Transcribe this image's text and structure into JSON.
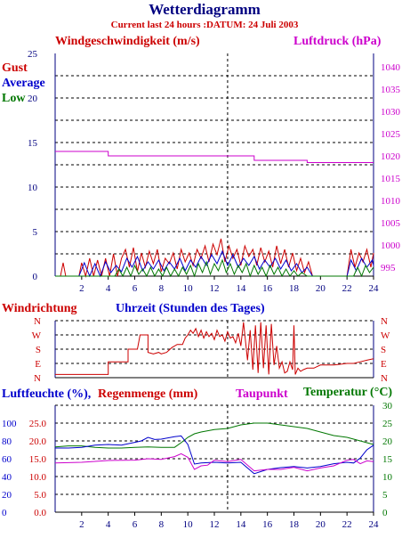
{
  "colors": {
    "navy": "#000080",
    "red": "#cc0000",
    "magenta": "#cc00cc",
    "green": "#007700",
    "blue": "#0000cc",
    "frame": "#000080"
  },
  "title": "Wetterdiagramm",
  "subtitle": "Current last 24 hours :DATUM: 24 Juli 2003",
  "chart_data": [
    {
      "type": "line",
      "panel": "wind",
      "label_left": "Windgeschwindigkeit (m/s)",
      "label_right": "Luftdruck (hPa)",
      "legend": [
        "Gust",
        "Average",
        "Low"
      ],
      "x_ticks": [
        "2",
        "4",
        "6",
        "8",
        "10",
        "12",
        "14",
        "16",
        "18",
        "20",
        "22",
        "24"
      ],
      "y_left_ticks": [
        "0",
        "5",
        "10",
        "15",
        "20",
        "25"
      ],
      "y_right_ticks": [
        "995",
        "1000",
        "1005",
        "1010",
        "1015",
        "1020",
        "1025",
        "1030",
        "1035",
        "1040"
      ],
      "xlim": [
        0,
        24
      ],
      "ylim_left": [
        0,
        25
      ],
      "ylim_right": [
        993,
        1043
      ],
      "grid": true,
      "marker_x": 13,
      "series": [
        {
          "name": "Luftdruck",
          "axis": "right",
          "x": [
            0,
            4,
            4,
            15,
            15,
            19,
            19,
            24
          ],
          "values": [
            1021,
            1021,
            1020,
            1020,
            1019,
            1019,
            1018.5,
            1018.5
          ]
        },
        {
          "name": "Gust",
          "axis": "left",
          "x": [
            0,
            0.4,
            0.6,
            0.8,
            1,
            1.5,
            1.8,
            2,
            2.3,
            2.6,
            2.9,
            3.2,
            3.5,
            3.8,
            4.1,
            4.4,
            4.7,
            5,
            5.3,
            5.6,
            5.9,
            6.2,
            6.5,
            6.8,
            7.1,
            7.4,
            7.7,
            8,
            8.3,
            8.6,
            8.9,
            9.2,
            9.5,
            9.8,
            10.1,
            10.4,
            10.7,
            11,
            11.3,
            11.6,
            11.9,
            12.2,
            12.5,
            12.8,
            13.1,
            13.4,
            13.7,
            14,
            14.3,
            14.6,
            14.9,
            15.2,
            15.5,
            15.8,
            16.1,
            16.4,
            16.7,
            17,
            17.3,
            17.6,
            17.9,
            18.2,
            18.5,
            18.8,
            19.1,
            19.4,
            19.7,
            20,
            20.5,
            21,
            21.5,
            22,
            22.3,
            22.6,
            22.9,
            23.2,
            23.5,
            23.8,
            24
          ],
          "values": [
            0,
            0,
            1.5,
            0,
            0,
            0,
            0,
            1.5,
            0,
            2,
            0,
            1.8,
            0,
            2,
            0,
            2.5,
            0,
            2,
            3,
            1,
            3.2,
            0.5,
            2.6,
            1,
            2.8,
            1.4,
            3,
            0.5,
            2,
            1.4,
            2.6,
            0.8,
            3,
            1.6,
            2.6,
            1.2,
            3,
            2,
            3.4,
            1.6,
            3.6,
            2.4,
            4.2,
            1.6,
            3.4,
            2,
            3,
            1.2,
            3.4,
            2.2,
            3,
            1.2,
            3.2,
            1.6,
            2.8,
            1,
            3.4,
            1.4,
            3,
            1,
            2.6,
            0.6,
            2,
            0.4,
            1.6,
            0,
            0,
            0,
            0,
            0,
            0,
            0,
            3,
            1,
            2.6,
            1.6,
            3,
            1,
            2.6
          ]
        },
        {
          "name": "Average",
          "axis": "left",
          "x": [
            0,
            1.8,
            2.2,
            2.6,
            3,
            3.4,
            3.8,
            4.2,
            4.6,
            5,
            5.4,
            5.8,
            6.2,
            6.6,
            7,
            7.4,
            7.8,
            8.2,
            8.6,
            9,
            9.4,
            9.8,
            10.2,
            10.6,
            11,
            11.4,
            11.8,
            12.2,
            12.6,
            13,
            13.4,
            13.8,
            14.2,
            14.6,
            15,
            15.4,
            15.8,
            16.2,
            16.6,
            17,
            17.4,
            17.8,
            18.2,
            18.6,
            19,
            19.4,
            20,
            22,
            22.3,
            22.7,
            23.1,
            23.5,
            23.9,
            24
          ],
          "values": [
            0,
            0,
            1.5,
            0,
            1.4,
            0,
            1.6,
            0.4,
            1.2,
            0.5,
            2,
            1,
            2.2,
            0.6,
            1.6,
            0.8,
            1.8,
            0.6,
            1.6,
            0.8,
            2,
            0.6,
            1.8,
            1,
            2.2,
            1.2,
            2.4,
            1.4,
            2.8,
            1.2,
            2.4,
            1,
            2,
            1.2,
            2.2,
            0.8,
            1.8,
            1,
            2,
            0.8,
            1.8,
            0.6,
            1.4,
            0.4,
            1,
            0,
            0,
            0,
            1.8,
            0.6,
            2,
            1,
            1.8,
            1.2
          ]
        },
        {
          "name": "Low",
          "axis": "left",
          "x": [
            0,
            4.5,
            4.8,
            5.1,
            5.4,
            5.7,
            6,
            6.3,
            6.6,
            6.9,
            7.2,
            7.5,
            7.8,
            8.1,
            8.4,
            8.7,
            9,
            9.3,
            9.6,
            9.9,
            10.2,
            10.5,
            10.8,
            11.1,
            11.4,
            11.7,
            12,
            12.3,
            12.6,
            12.9,
            13.2,
            13.5,
            13.8,
            14.1,
            14.4,
            14.7,
            15,
            15.3,
            15.6,
            15.9,
            16.2,
            16.5,
            16.8,
            17.1,
            17.4,
            17.7,
            18,
            18.3,
            18.6,
            19,
            22.5,
            22.8,
            23.1,
            23.4,
            23.7,
            24
          ],
          "values": [
            0,
            0,
            0.8,
            0,
            1,
            0,
            1.2,
            0.2,
            0.8,
            0,
            1,
            0,
            0.8,
            0,
            1,
            0,
            0.8,
            0,
            1,
            0.2,
            1.2,
            0,
            1.4,
            0.4,
            1.6,
            0.2,
            1.4,
            0.6,
            1.8,
            0.4,
            1.4,
            0.2,
            1.2,
            0.4,
            1.4,
            0,
            1.2,
            0.2,
            1,
            0,
            1.2,
            0.2,
            1,
            0,
            0.8,
            0,
            0.6,
            0,
            0.4,
            0,
            0,
            1,
            0,
            1.2,
            0.4,
            1
          ]
        }
      ]
    },
    {
      "type": "line",
      "panel": "direction",
      "label_left": "Windrichtung",
      "label_center": "Uhrzeit (Stunden des Tages)",
      "y_ticks": [
        "N",
        "W",
        "S",
        "E",
        "N"
      ],
      "ylim": [
        0,
        360
      ],
      "xlim": [
        0,
        24
      ],
      "grid": true,
      "marker_x": 13,
      "series": [
        {
          "name": "Windrichtung",
          "x": [
            0,
            4,
            4,
            4.5,
            5,
            5.5,
            5.5,
            6,
            6.2,
            6.4,
            6.6,
            7,
            7,
            7.4,
            7.8,
            8,
            8.4,
            8.8,
            9.2,
            9.6,
            9.8,
            10,
            10.2,
            10.4,
            10.6,
            10.8,
            11,
            11.2,
            11.4,
            11.6,
            11.8,
            12,
            12.2,
            12.4,
            12.6,
            12.8,
            13,
            13.2,
            13.4,
            13.6,
            13.8,
            14,
            14.2,
            14.5,
            14.7,
            14.9,
            15.1,
            15.3,
            15.5,
            15.7,
            15.9,
            16.1,
            16.3,
            16.5,
            16.7,
            16.9,
            17.1,
            17.3,
            17.5,
            17.7,
            17.9,
            18,
            18.1,
            18.3,
            18.5,
            18.7,
            19,
            19.5,
            20,
            21,
            22,
            22.5,
            23,
            23.5,
            24
          ],
          "values": [
            20,
            20,
            100,
            100,
            100,
            100,
            180,
            180,
            180,
            270,
            270,
            270,
            160,
            150,
            160,
            150,
            160,
            190,
            210,
            210,
            250,
            270,
            300,
            280,
            310,
            260,
            300,
            250,
            290,
            260,
            280,
            240,
            300,
            260,
            270,
            230,
            290,
            250,
            260,
            220,
            280,
            200,
            350,
            110,
            300,
            50,
            330,
            30,
            350,
            60,
            330,
            20,
            340,
            80,
            200,
            60,
            100,
            30,
            40,
            100,
            50,
            330,
            20,
            60,
            40,
            50,
            60,
            60,
            80,
            80,
            90,
            90,
            100,
            110,
            120
          ]
        }
      ]
    },
    {
      "type": "line",
      "panel": "humidity",
      "label_left": "Luftfeuchte (%),",
      "label_left2": "Regenmenge (mm)",
      "label_dew": "Taupunkt",
      "label_right": "Temperatur (°C)",
      "x_ticks": [
        "2",
        "4",
        "6",
        "8",
        "10",
        "12",
        "14",
        "16",
        "18",
        "20",
        "22",
        "24"
      ],
      "y_humidity_ticks": [
        "0",
        "20",
        "40",
        "60",
        "80",
        "100"
      ],
      "y_rain_ticks": [
        "0.0",
        "5.0",
        "10.0",
        "15.0",
        "20.0",
        "25.0"
      ],
      "y_temp_ticks": [
        "0",
        "5",
        "10",
        "15",
        "20",
        "25",
        "30"
      ],
      "xlim": [
        0,
        24
      ],
      "ylim_temp": [
        0,
        30
      ],
      "grid": true,
      "marker_x": 13,
      "series": [
        {
          "name": "Temperatur",
          "axis": "temp",
          "x": [
            0,
            1,
            2,
            3,
            4,
            5,
            6,
            7,
            8,
            9,
            9.5,
            10,
            10.5,
            11,
            12,
            13,
            14,
            15,
            16,
            17,
            18,
            19,
            20,
            21,
            22,
            23,
            24
          ],
          "values": [
            18.3,
            18.6,
            18.6,
            18.2,
            18,
            18,
            18.2,
            18.3,
            18.2,
            18.2,
            19.5,
            21,
            22,
            22.5,
            23.2,
            23.5,
            24.5,
            25,
            25,
            24.5,
            24,
            23.5,
            22.5,
            21.5,
            21,
            20,
            19
          ]
        },
        {
          "name": "Luftfeuchte",
          "axis": "temp",
          "x": [
            0,
            1,
            2,
            3,
            4,
            5,
            6,
            6.5,
            7,
            7.5,
            8,
            9,
            9.5,
            10,
            10.5,
            11,
            12,
            13,
            14,
            15,
            16,
            17,
            18,
            19,
            20,
            21,
            22,
            22.5,
            23,
            23.5,
            24
          ],
          "values": [
            18,
            18,
            18.2,
            18.8,
            19,
            18.8,
            19.6,
            20,
            21,
            20.4,
            20.5,
            21.2,
            21.4,
            19,
            13.5,
            13.8,
            14,
            13.8,
            14,
            10.8,
            12,
            12.5,
            12.8,
            12.4,
            12.8,
            13.6,
            14,
            13.8,
            15.2,
            17.5,
            18.8
          ]
        },
        {
          "name": "Taupunkt",
          "axis": "temp",
          "x": [
            0,
            2,
            4,
            6,
            7,
            8,
            9,
            9.5,
            10,
            10.5,
            11,
            11.5,
            12,
            13,
            14,
            15,
            16,
            17,
            18,
            19,
            20,
            21,
            22,
            22.5,
            23,
            23.5,
            24
          ],
          "values": [
            13.8,
            14,
            14.5,
            14.6,
            15,
            14.8,
            15.6,
            16.4,
            15.4,
            12,
            13,
            13.2,
            14.6,
            14.2,
            14.8,
            11.6,
            12,
            12,
            12.6,
            11.6,
            12.4,
            13,
            14.6,
            14.8,
            13.6,
            14.4,
            14.2
          ]
        }
      ]
    }
  ]
}
